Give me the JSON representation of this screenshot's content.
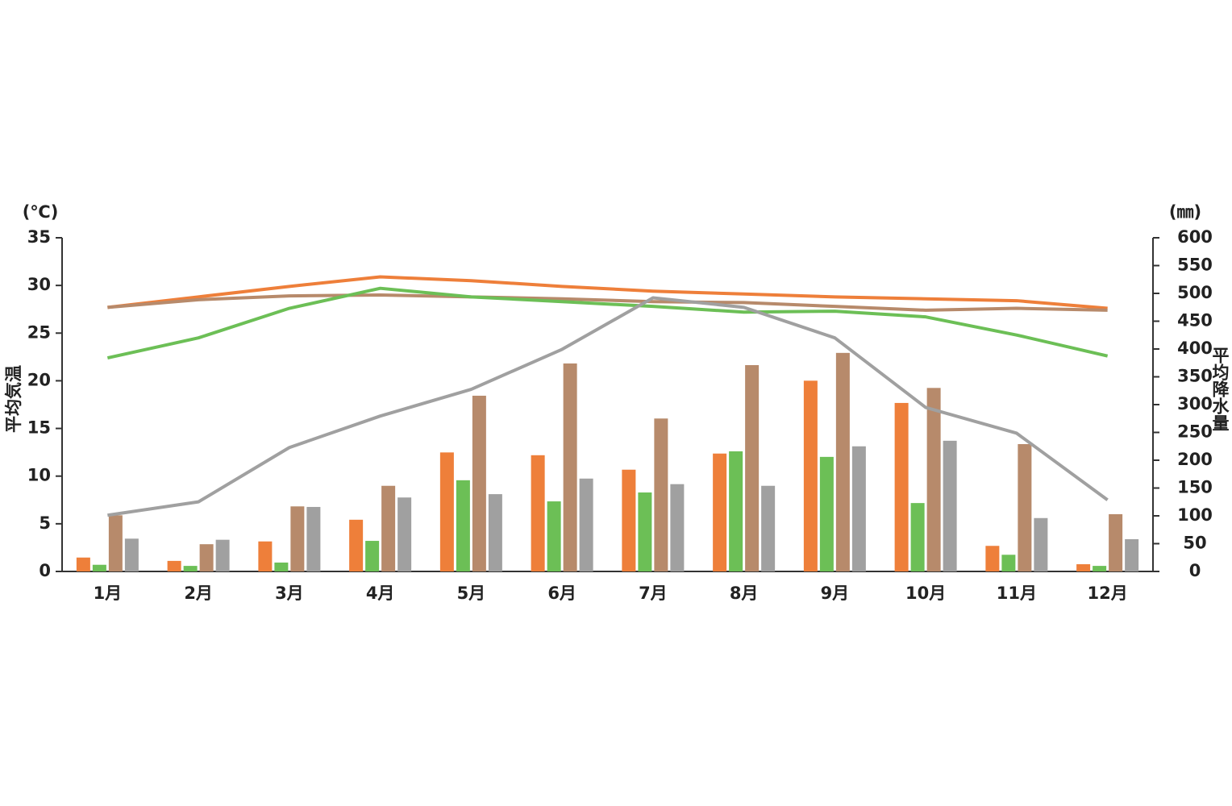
{
  "chart_data": {
    "type": "bar",
    "ylabel_unit": "(℃)",
    "ylabel": "平均気温",
    "y2label_unit": "(㎜)",
    "y2label": "平均降水量",
    "categories": [
      "1月",
      "2月",
      "3月",
      "4月",
      "5月",
      "6月",
      "7月",
      "8月",
      "9月",
      "10月",
      "11月",
      "12月"
    ],
    "ylim": [
      0,
      35
    ],
    "yticks": [
      0,
      5,
      10,
      15,
      20,
      25,
      30,
      35
    ],
    "y2lim": [
      0,
      600
    ],
    "y2ticks": [
      0,
      50,
      100,
      150,
      200,
      250,
      300,
      350,
      400,
      450,
      500,
      550,
      600
    ],
    "series": [
      {
        "type": "bar",
        "axis": "y2",
        "color": "#ee7f3a",
        "values": [
          25,
          19,
          54,
          93,
          214,
          209,
          183,
          212,
          343,
          303,
          46,
          13
        ]
      },
      {
        "type": "bar",
        "axis": "y2",
        "color": "#6cbf56",
        "values": [
          12,
          10,
          16,
          55,
          164,
          126,
          142,
          216,
          206,
          123,
          30,
          10
        ]
      },
      {
        "type": "bar",
        "axis": "y2",
        "color": "#b78a6b",
        "values": [
          101,
          49,
          117,
          154,
          316,
          374,
          275,
          371,
          393,
          330,
          229,
          103
        ]
      },
      {
        "type": "bar",
        "axis": "y2",
        "color": "#a0a0a0",
        "values": [
          59,
          57,
          116,
          133,
          139,
          167,
          157,
          154,
          225,
          235,
          96,
          58
        ]
      },
      {
        "type": "line",
        "color": "#ee7f3a",
        "values": [
          27.7,
          28.8,
          29.9,
          30.9,
          30.5,
          29.9,
          29.4,
          29.1,
          28.8,
          28.6,
          28.4,
          27.6
        ]
      },
      {
        "type": "line",
        "color": "#b78a6b",
        "values": [
          27.7,
          28.5,
          28.9,
          29.0,
          28.8,
          28.6,
          28.3,
          28.2,
          27.8,
          27.4,
          27.6,
          27.4
        ]
      },
      {
        "type": "line",
        "color": "#6cbf56",
        "values": [
          22.4,
          24.5,
          27.6,
          29.7,
          28.8,
          28.3,
          27.8,
          27.2,
          27.3,
          26.7,
          24.8,
          22.6
        ]
      },
      {
        "type": "line",
        "color": "#a0a0a0",
        "values": [
          5.9,
          7.3,
          13.0,
          16.3,
          19.1,
          23.3,
          28.7,
          27.7,
          24.5,
          17.2,
          14.5,
          7.5
        ]
      }
    ]
  }
}
